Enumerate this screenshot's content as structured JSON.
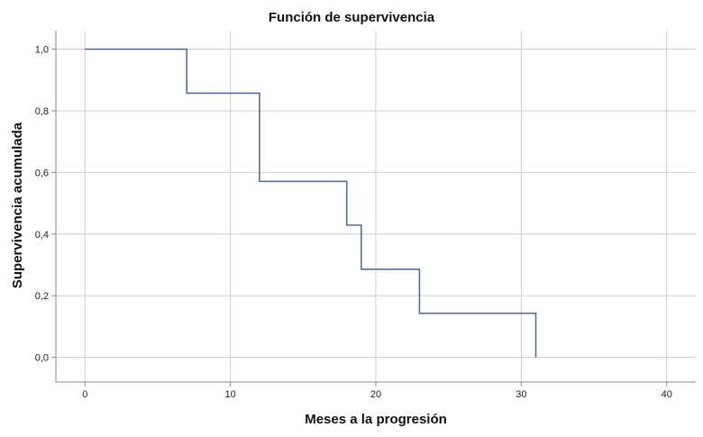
{
  "chart_data": {
    "type": "line",
    "title": "Función de supervivencia",
    "xlabel": "Meses a la progresión",
    "ylabel": "Supervivencia acumulada",
    "xlim": [
      -2,
      42
    ],
    "ylim": [
      -0.08,
      1.06
    ],
    "xticks": [
      0,
      10,
      20,
      30,
      40
    ],
    "yticks": [
      0.0,
      0.2,
      0.4,
      0.6,
      0.8,
      1.0
    ],
    "xtick_labels": [
      "0",
      "10",
      "20",
      "30",
      "40"
    ],
    "ytick_labels": [
      "0,0",
      "0,2",
      "0,4",
      "0,6",
      "0,8",
      "1,0"
    ],
    "grid": true,
    "series": [
      {
        "step": "post",
        "color": "#5a6b94",
        "x": [
          0,
          7,
          12,
          18,
          19,
          23,
          31
        ],
        "y": [
          1.0,
          0.857,
          0.571,
          0.429,
          0.286,
          0.143,
          0.0
        ]
      }
    ]
  }
}
